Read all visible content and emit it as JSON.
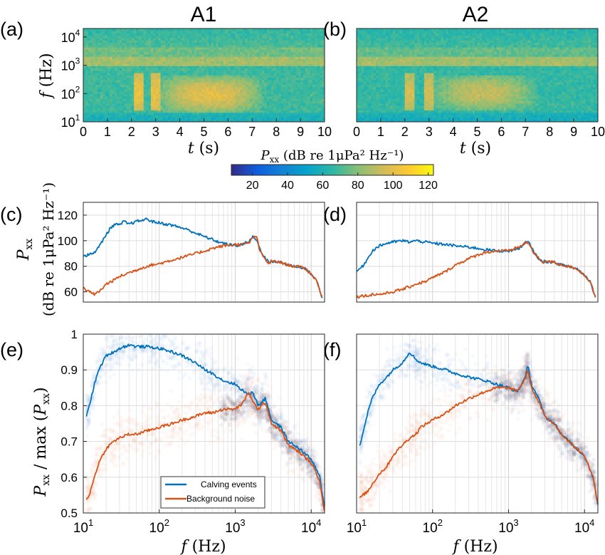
{
  "panel_tags": [
    "(a)",
    "(b)",
    "(c)",
    "(d)",
    "(e)",
    "(f)"
  ],
  "column_titles": [
    "A1",
    "A2"
  ],
  "colorbar": {
    "label": "P_xx (dB re 1μPa² Hz⁻¹)",
    "label_parts": {
      "P": "P",
      "sub": "xx",
      "rest": " (dB re 1μPa² Hz⁻¹)"
    },
    "ticks": [
      "20",
      "40",
      "60",
      "80",
      "100",
      "120"
    ],
    "range": [
      8,
      123
    ],
    "colormap": "parula",
    "stops": [
      "#352a87",
      "#0f5cdd",
      "#1481d6",
      "#06a4ca",
      "#2eb7a4",
      "#87bf77",
      "#d1bb59",
      "#fec832",
      "#f9fb0e"
    ]
  },
  "legend": {
    "entries": [
      "Calving events",
      "Background noise"
    ],
    "colors": [
      "#0072bd",
      "#d95319"
    ],
    "placement": "lower-middle of panel (e)"
  },
  "chart_data": [
    {
      "panel": "(a)",
      "type": "heatmap",
      "title": "A1",
      "xlabel": "t (s)",
      "ylabel": "f (Hz)",
      "xlim": [
        0,
        10
      ],
      "ylim": [
        10,
        20000
      ],
      "yscale": "log",
      "xticks": [
        "0",
        "1",
        "2",
        "3",
        "4",
        "5",
        "6",
        "7",
        "8",
        "9",
        "10"
      ],
      "yticks": [
        "10^1",
        "10^2",
        "10^3",
        "10^4"
      ],
      "grid": false,
      "features": {
        "background_level_db": 68,
        "low_freq_band_db": 58,
        "tonal_band_hz": [
          900,
          2000
        ],
        "tonal_band_db": 86,
        "event_burst_times_s": [
          2.3,
          3.0
        ],
        "event_burst_db": 102,
        "event_energy_time_range_s": [
          3.5,
          7.0
        ],
        "event_energy_freq_range_hz": [
          30,
          300
        ],
        "event_energy_db": 100
      }
    },
    {
      "panel": "(b)",
      "type": "heatmap",
      "title": "A2",
      "xlabel": "t (s)",
      "ylabel": "",
      "xlim": [
        0,
        10
      ],
      "ylim": [
        10,
        20000
      ],
      "yscale": "log",
      "xticks": [
        "0",
        "1",
        "2",
        "3",
        "4",
        "5",
        "6",
        "7",
        "8",
        "9",
        "10"
      ],
      "grid": false,
      "features": {
        "background_level_db": 66,
        "low_freq_band_db": 56,
        "tonal_band_hz": [
          900,
          2000
        ],
        "tonal_band_db": 86,
        "event_burst_times_s": [
          2.2,
          3.0
        ],
        "event_burst_db": 96,
        "event_energy_time_range_s": [
          3.5,
          7.0
        ],
        "event_energy_freq_range_hz": [
          40,
          300
        ],
        "event_energy_db": 92
      }
    },
    {
      "panel": "(c)",
      "type": "line",
      "xlabel": "",
      "ylabel": "P_xx (dB re 1μPa² Hz⁻¹)",
      "ylabel_parts": {
        "line1": "P",
        "sub": "xx",
        "line2": "(dB re 1μPa² Hz⁻¹)"
      },
      "xscale": "log",
      "xlim": [
        10,
        15000
      ],
      "ylim": [
        52,
        130
      ],
      "yticks": [
        "60",
        "80",
        "100",
        "120"
      ],
      "grid": true,
      "series": [
        {
          "name": "Calving events",
          "color": "#0072bd",
          "x": [
            10,
            12,
            14,
            16,
            18,
            20,
            23,
            26,
            30,
            34,
            40,
            45,
            50,
            60,
            70,
            80,
            100,
            120,
            150,
            200,
            250,
            300,
            400,
            500,
            600,
            800,
            1000,
            1200,
            1500,
            1700,
            1900,
            2100,
            2500,
            2800,
            3000,
            4000,
            5000,
            6000,
            8000,
            10000,
            12000,
            14000
          ],
          "y": [
            88,
            89,
            91,
            95,
            100,
            105,
            110,
            113,
            112,
            115,
            113,
            114,
            115,
            116,
            117,
            115,
            114,
            113,
            112,
            110,
            108,
            106,
            103,
            101,
            99,
            97,
            96,
            97,
            99,
            103,
            101,
            94,
            86,
            83,
            84,
            83,
            81,
            80,
            79,
            74,
            68,
            55
          ]
        },
        {
          "name": "Background noise",
          "color": "#d95319",
          "x": [
            10,
            12,
            14,
            16,
            18,
            20,
            25,
            30,
            40,
            50,
            60,
            80,
            100,
            150,
            200,
            300,
            400,
            500,
            700,
            1000,
            1200,
            1500,
            1700,
            1900,
            2100,
            2500,
            2800,
            3000,
            4000,
            5000,
            6000,
            8000,
            10000,
            12000,
            14000
          ],
          "y": [
            63,
            60,
            58,
            60,
            63,
            66,
            69,
            72,
            75,
            77,
            79,
            81,
            82,
            85,
            87,
            90,
            92,
            94,
            96,
            97,
            97,
            98,
            102,
            104,
            92,
            85,
            82,
            84,
            83,
            81,
            80,
            79,
            74,
            68,
            55
          ]
        }
      ]
    },
    {
      "panel": "(d)",
      "type": "line",
      "xlabel": "",
      "ylabel": "",
      "xscale": "log",
      "xlim": [
        10,
        15000
      ],
      "ylim": [
        52,
        130
      ],
      "grid": true,
      "series": [
        {
          "name": "Calving events",
          "color": "#0072bd",
          "x": [
            10,
            12,
            14,
            16,
            20,
            25,
            30,
            40,
            50,
            60,
            80,
            100,
            150,
            200,
            300,
            400,
            500,
            700,
            1000,
            1200,
            1500,
            1700,
            1900,
            2100,
            2500,
            2800,
            3000,
            4000,
            5000,
            6000,
            8000,
            10000,
            12000,
            14000
          ],
          "y": [
            76,
            80,
            86,
            92,
            96,
            98,
            99,
            100,
            99,
            100,
            99,
            98,
            97,
            96,
            95,
            94,
            93,
            92,
            92,
            93,
            95,
            99,
            98,
            92,
            86,
            83,
            84,
            83,
            81,
            80,
            78,
            73,
            68,
            55
          ]
        },
        {
          "name": "Background noise",
          "color": "#d95319",
          "x": [
            10,
            12,
            14,
            16,
            20,
            25,
            30,
            40,
            50,
            60,
            80,
            100,
            150,
            200,
            300,
            400,
            500,
            700,
            1000,
            1200,
            1500,
            1700,
            1900,
            2100,
            2500,
            2800,
            3000,
            4000,
            5000,
            6000,
            8000,
            10000,
            12000,
            14000
          ],
          "y": [
            56,
            57,
            57,
            58,
            58,
            59,
            60,
            62,
            64,
            66,
            68,
            71,
            76,
            81,
            86,
            89,
            91,
            92,
            92,
            94,
            96,
            99,
            97,
            91,
            86,
            83,
            84,
            83,
            81,
            80,
            78,
            73,
            68,
            55
          ]
        }
      ]
    },
    {
      "panel": "(e)",
      "type": "line",
      "xlabel": "f (Hz)",
      "ylabel": "P_xx / max (P_xx)",
      "xscale": "log",
      "xlim": [
        10,
        15000
      ],
      "ylim": [
        0.5,
        1.0
      ],
      "xticks": [
        "10^1",
        "10^2",
        "10^3",
        "10^4"
      ],
      "yticks": [
        "0.5",
        "0.6",
        "0.7",
        "0.8",
        "0.9",
        "1"
      ],
      "grid": true,
      "series": [
        {
          "name": "Calving events",
          "color": "#0072bd",
          "x": [
            11,
            12,
            14,
            16,
            20,
            25,
            30,
            40,
            50,
            70,
            100,
            150,
            200,
            300,
            400,
            500,
            700,
            1000,
            1300,
            1500,
            1700,
            2000,
            2500,
            3000,
            4000,
            5000,
            7000,
            10000,
            13000,
            15000
          ],
          "y": [
            0.77,
            0.8,
            0.86,
            0.9,
            0.94,
            0.95,
            0.96,
            0.97,
            0.965,
            0.965,
            0.96,
            0.95,
            0.94,
            0.92,
            0.9,
            0.89,
            0.87,
            0.86,
            0.84,
            0.83,
            0.84,
            0.8,
            0.82,
            0.76,
            0.74,
            0.7,
            0.68,
            0.65,
            0.6,
            0.51
          ]
        },
        {
          "name": "Background noise",
          "color": "#d95319",
          "x": [
            11,
            12,
            14,
            16,
            20,
            25,
            30,
            40,
            50,
            70,
            100,
            150,
            200,
            300,
            400,
            500,
            700,
            1000,
            1300,
            1500,
            1700,
            2000,
            2500,
            3000,
            4000,
            5000,
            7000,
            10000,
            13000,
            15000
          ],
          "y": [
            0.54,
            0.55,
            0.6,
            0.64,
            0.68,
            0.7,
            0.71,
            0.72,
            0.72,
            0.73,
            0.74,
            0.75,
            0.76,
            0.77,
            0.78,
            0.78,
            0.79,
            0.79,
            0.81,
            0.84,
            0.81,
            0.79,
            0.81,
            0.75,
            0.73,
            0.69,
            0.67,
            0.64,
            0.59,
            0.5
          ]
        }
      ]
    },
    {
      "panel": "(f)",
      "type": "line",
      "xlabel": "f (Hz)",
      "ylabel": "",
      "xscale": "log",
      "xlim": [
        10,
        15000
      ],
      "ylim": [
        0.5,
        1.0
      ],
      "xticks": [
        "10^1",
        "10^2",
        "10^3",
        "10^4"
      ],
      "grid": true,
      "series": [
        {
          "name": "Calving events",
          "color": "#0072bd",
          "x": [
            11,
            12,
            14,
            16,
            20,
            25,
            30,
            40,
            50,
            60,
            70,
            100,
            150,
            200,
            300,
            500,
            700,
            1000,
            1300,
            1500,
            1700,
            1800,
            2000,
            2500,
            3000,
            4000,
            5000,
            7000,
            10000,
            13000,
            15000
          ],
          "y": [
            0.69,
            0.72,
            0.78,
            0.82,
            0.86,
            0.88,
            0.9,
            0.92,
            0.95,
            0.93,
            0.92,
            0.91,
            0.9,
            0.89,
            0.88,
            0.87,
            0.86,
            0.85,
            0.84,
            0.86,
            0.89,
            0.91,
            0.86,
            0.82,
            0.77,
            0.75,
            0.72,
            0.69,
            0.66,
            0.6,
            0.52
          ]
        },
        {
          "name": "Background noise",
          "color": "#d95319",
          "x": [
            11,
            12,
            14,
            16,
            20,
            25,
            30,
            40,
            50,
            60,
            70,
            100,
            150,
            200,
            300,
            500,
            700,
            1000,
            1300,
            1500,
            1700,
            1800,
            2000,
            2500,
            3000,
            4000,
            5000,
            7000,
            10000,
            13000,
            15000
          ],
          "y": [
            0.54,
            0.55,
            0.56,
            0.58,
            0.61,
            0.63,
            0.66,
            0.69,
            0.71,
            0.72,
            0.74,
            0.76,
            0.78,
            0.8,
            0.82,
            0.84,
            0.85,
            0.85,
            0.84,
            0.86,
            0.88,
            0.9,
            0.85,
            0.81,
            0.77,
            0.75,
            0.72,
            0.69,
            0.66,
            0.6,
            0.52
          ]
        }
      ]
    }
  ]
}
